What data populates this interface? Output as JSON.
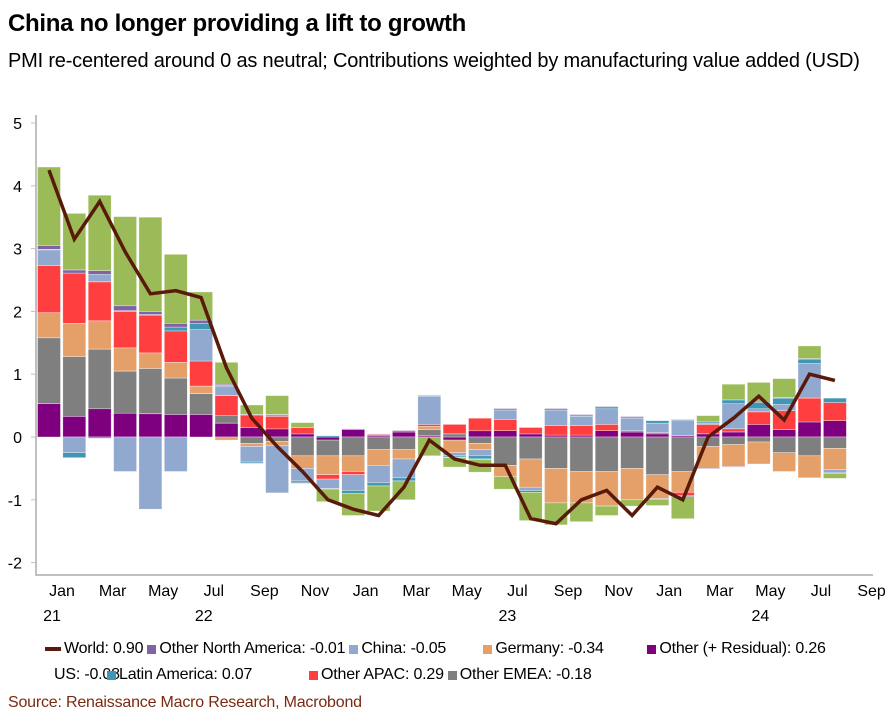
{
  "header": {
    "title": "China no longer providing a lift to growth",
    "subtitle": "PMI re-centered around 0 as neutral; Contributions weighted by manufacturing value added (USD)"
  },
  "source": "Source: Renaissance Macro Research, Macrobond",
  "chart_data": {
    "type": "bar",
    "stacked": true,
    "title": "China no longer providing a lift to growth",
    "subtitle": "PMI re-centered around 0 as neutral; Contributions weighted by manufacturing value added (USD)",
    "xlabel": "",
    "ylabel": "",
    "ylim": [
      -2,
      5
    ],
    "yticks": [
      5,
      4,
      3,
      2,
      1,
      0,
      -1,
      -2
    ],
    "grid": false,
    "legend_position": "bottom",
    "xtick_labels": [
      "Jan",
      "Mar",
      "May",
      "Jul",
      "Sep",
      "Nov",
      "Jan",
      "Mar",
      "May",
      "Jul",
      "Sep",
      "Nov",
      "Jan",
      "Mar",
      "May",
      "Jul",
      "Sep"
    ],
    "xtick_years": [
      {
        "label": "21",
        "under_tick": 0
      },
      {
        "label": "22",
        "under_tick": 3
      },
      {
        "label": "23",
        "under_tick": 9
      },
      {
        "label": "24",
        "under_tick": 14
      }
    ],
    "n_bars": 32,
    "series": [
      {
        "name": "Other (+ Residual)",
        "color": "#7f007f",
        "legend": "Other (+ Residual): 0.26",
        "values": [
          0.53,
          0.33,
          0.45,
          0.38,
          0.37,
          0.36,
          0.36,
          0.22,
          0.15,
          0.13,
          0.05,
          -0.05,
          0.12,
          0.02,
          0.08,
          0.02,
          -0.05,
          0.1,
          0.1,
          0.05,
          0.03,
          0.03,
          0.1,
          0.08,
          0.05,
          0.02,
          0.05,
          0.08,
          0.2,
          0.12,
          0.24,
          0.26
        ]
      },
      {
        "name": "Other EMEA",
        "color": "#7f7f7f",
        "legend": "Other EMEA: -0.18",
        "values": [
          1.05,
          0.95,
          0.95,
          0.67,
          0.72,
          0.58,
          0.33,
          0.12,
          -0.1,
          -0.07,
          -0.3,
          -0.25,
          -0.3,
          -0.2,
          -0.2,
          0.1,
          0.05,
          -0.1,
          -0.45,
          -0.35,
          -0.5,
          -0.55,
          -0.55,
          -0.5,
          -0.6,
          -0.55,
          -0.15,
          -0.12,
          -0.08,
          -0.25,
          -0.3,
          -0.18
        ]
      },
      {
        "name": "Germany",
        "color": "#e5a06a",
        "legend": "Germany: -0.34",
        "values": [
          0.4,
          0.53,
          0.45,
          0.37,
          0.25,
          0.25,
          0.12,
          -0.05,
          -0.05,
          -0.07,
          -0.2,
          -0.3,
          -0.25,
          -0.25,
          -0.15,
          0.05,
          -0.2,
          -0.1,
          -0.18,
          -0.45,
          -0.55,
          -0.5,
          -0.55,
          -0.5,
          -0.38,
          -0.33,
          -0.35,
          -0.35,
          -0.35,
          -0.3,
          -0.35,
          -0.34
        ]
      },
      {
        "name": "Other APAC",
        "color": "#ff3f3f",
        "legend": "Other APAC: 0.29",
        "values": [
          0.75,
          0.8,
          0.62,
          0.58,
          0.6,
          0.5,
          0.4,
          0.32,
          0.2,
          0.2,
          0.1,
          -0.07,
          -0.05,
          0.02,
          0.02,
          0.03,
          0.15,
          0.2,
          0.18,
          0.1,
          0.15,
          0.15,
          0.1,
          0.02,
          0.02,
          -0.05,
          0.15,
          0.05,
          0.2,
          0.3,
          0.38,
          0.29
        ]
      },
      {
        "name": "China",
        "color": "#92a9cf",
        "legend": "China: -0.05",
        "values": [
          0.25,
          -0.25,
          0.12,
          -0.55,
          -1.15,
          -0.55,
          0.5,
          0.15,
          -0.25,
          -0.75,
          -0.2,
          -0.15,
          -0.25,
          -0.28,
          -0.3,
          0.45,
          -0.05,
          -0.1,
          0.15,
          -0.05,
          0.25,
          0.15,
          0.25,
          0.2,
          0.15,
          0.25,
          0.02,
          0.4,
          0.05,
          0.1,
          0.55,
          -0.05
        ]
      },
      {
        "name": "Latin America",
        "color": "#4196b4",
        "legend": "Latin America: 0.07",
        "values": [
          0.01,
          -0.08,
          -0.02,
          0.01,
          0.01,
          0.06,
          0.1,
          0.01,
          -0.02,
          0.02,
          -0.03,
          0.02,
          -0.05,
          -0.05,
          -0.05,
          0.01,
          -0.02,
          -0.05,
          0.02,
          -0.03,
          0.02,
          0.02,
          0.03,
          0.02,
          0.04,
          0.01,
          0.02,
          0.06,
          0.1,
          0.1,
          0.07,
          0.07
        ]
      },
      {
        "name": "Other North America",
        "color": "#8064a2",
        "legend": "Other North America: -0.01",
        "values": [
          0.06,
          0.05,
          0.06,
          0.08,
          0.05,
          0.06,
          0.05,
          0.02,
          0.01,
          0.01,
          -0.01,
          -0.01,
          0.01,
          0.01,
          0.01,
          0.01,
          -0.01,
          -0.01,
          0.01,
          0.01,
          0.01,
          0.01,
          0.01,
          0.01,
          -0.01,
          -0.02,
          -0.01,
          -0.01,
          0.02,
          0.01,
          0.01,
          -0.01
        ]
      },
      {
        "name": "US",
        "color": "#9bbb59",
        "legend": "US: -0.08",
        "values": [
          1.25,
          0.9,
          1.2,
          1.42,
          1.5,
          1.1,
          0.45,
          0.35,
          0.15,
          0.3,
          0.08,
          -0.2,
          -0.35,
          -0.4,
          -0.3,
          -0.3,
          -0.15,
          -0.2,
          -0.2,
          -0.45,
          -0.35,
          -0.3,
          -0.15,
          -0.1,
          -0.1,
          -0.35,
          0.1,
          0.25,
          0.3,
          0.3,
          0.2,
          -0.08
        ]
      }
    ],
    "line": {
      "name": "World",
      "color": "#5a1a0a",
      "legend": "World: 0.90",
      "values": [
        4.25,
        3.15,
        3.75,
        2.95,
        2.28,
        2.33,
        2.22,
        1.1,
        0.3,
        -0.15,
        -0.55,
        -1.0,
        -1.15,
        -1.25,
        -0.8,
        -0.05,
        -0.35,
        -0.45,
        -0.45,
        -1.3,
        -1.38,
        -1.0,
        -0.85,
        -1.25,
        -0.8,
        -1.0,
        0.0,
        0.3,
        0.65,
        0.27,
        1.0,
        0.9
      ]
    },
    "legend_rows": [
      [
        "World",
        "Other North America",
        "China",
        "Germany",
        "Other (+ Residual)"
      ],
      [
        "US",
        "Latin America",
        "Other APAC",
        "Other EMEA"
      ]
    ]
  }
}
